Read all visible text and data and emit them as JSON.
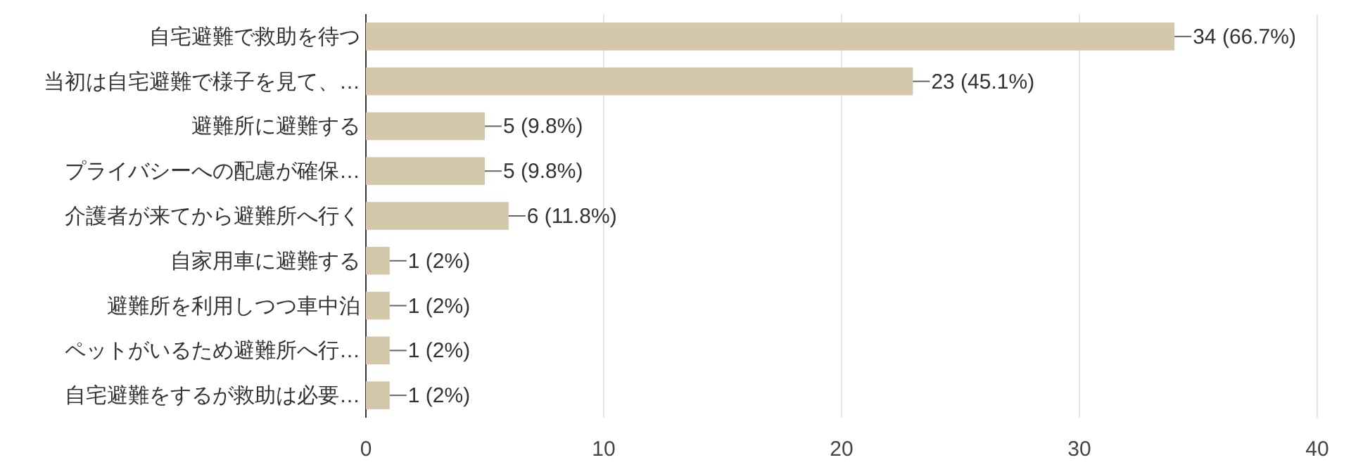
{
  "chart_data": {
    "type": "bar",
    "orientation": "horizontal",
    "categories": [
      "自宅避難で救助を待つ",
      "当初は自宅避難で様子を見て、…",
      "避難所に避難する",
      "プライバシーへの配慮が確保…",
      "介護者が来てから避難所へ行く",
      "自家用車に避難する",
      "避難所を利用しつつ車中泊",
      "ペットがいるため避難所へ行…",
      "自宅避難をするが救助は必要…"
    ],
    "values": [
      34,
      23,
      5,
      5,
      6,
      1,
      1,
      1,
      1
    ],
    "value_labels": [
      "34 (66.7%)",
      "23 (45.1%)",
      "5 (9.8%)",
      "5 (9.8%)",
      "6 (11.8%)",
      "1 (2%)",
      "1 (2%)",
      "1 (2%)",
      "1 (2%)"
    ],
    "color": "#d5c7a9",
    "xlim": [
      0,
      40
    ],
    "xticks": [
      0,
      10,
      20,
      30,
      40
    ],
    "grid": "x"
  }
}
